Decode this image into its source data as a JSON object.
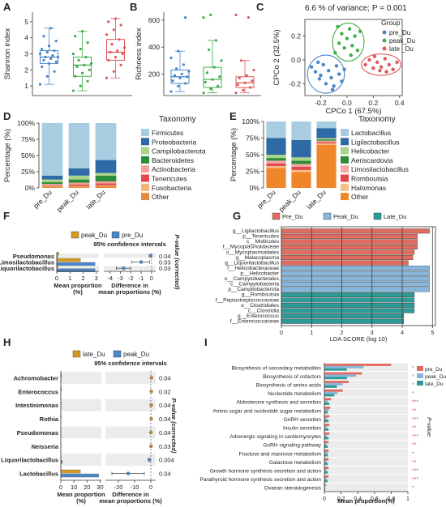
{
  "colors": {
    "pre": "#4a86c8",
    "peak": "#3fae49",
    "late": "#e0585b",
    "orange": "#d89a1e",
    "teal": "#2e9a96"
  },
  "chart_data": [
    {
      "panel": "A",
      "type": "box",
      "ylabel": "Shannon index",
      "yticks": [
        1,
        2,
        3,
        4,
        5
      ],
      "ylim": [
        0.4,
        5.6
      ],
      "groups": [
        "pre_Du",
        "peak_Du",
        "late_Du"
      ],
      "stats": [
        {
          "min": 1.1,
          "q1": 2.4,
          "med": 2.8,
          "q3": 3.2,
          "max": 4.6
        },
        {
          "min": 0.7,
          "q1": 1.6,
          "med": 2.3,
          "q3": 2.8,
          "max": 4.4
        },
        {
          "min": 1.5,
          "q1": 2.6,
          "med": 3.1,
          "q3": 3.9,
          "max": 5.2
        }
      ],
      "points": [
        [
          1.1,
          1.6,
          1.9,
          2.2,
          2.4,
          2.5,
          2.6,
          2.7,
          2.8,
          2.8,
          2.9,
          3.0,
          3.1,
          3.2,
          3.3,
          3.5,
          3.8,
          4.1,
          4.6
        ],
        [
          0.7,
          1.0,
          1.3,
          1.6,
          1.8,
          2.0,
          2.2,
          2.3,
          2.4,
          2.6,
          2.8,
          3.0,
          3.3,
          3.7,
          4.1,
          4.4
        ],
        [
          1.5,
          1.9,
          2.3,
          2.6,
          2.8,
          3.0,
          3.1,
          3.2,
          3.4,
          3.6,
          3.9,
          4.2,
          4.5,
          4.8,
          5.0,
          5.2
        ]
      ]
    },
    {
      "panel": "B",
      "type": "box",
      "ylabel": "Richness index",
      "yticks": [
        200,
        400,
        600
      ],
      "ylim": [
        40,
        660
      ],
      "groups": [
        "pre_Du",
        "peak_Du",
        "late_Du"
      ],
      "stats": [
        {
          "min": 70,
          "q1": 130,
          "med": 180,
          "q3": 230,
          "max": 370
        },
        {
          "min": 60,
          "q1": 100,
          "med": 160,
          "q3": 250,
          "max": 450
        },
        {
          "min": 60,
          "q1": 100,
          "med": 135,
          "q3": 180,
          "max": 300
        }
      ],
      "points": [
        [
          70,
          110,
          130,
          150,
          170,
          180,
          190,
          200,
          220,
          240,
          270,
          320,
          370,
          620
        ],
        [
          60,
          90,
          110,
          140,
          160,
          180,
          210,
          250,
          300,
          380,
          450,
          620,
          640
        ],
        [
          60,
          80,
          100,
          120,
          135,
          150,
          170,
          190,
          230,
          300,
          620,
          640
        ]
      ]
    },
    {
      "panel": "C",
      "type": "scatter",
      "title": "6.6 % of variance; P = 0.001",
      "xlabel": "CPCo 1 (67.5%)",
      "ylabel": "CPCo 2 (32.5%)",
      "xlim": [
        -0.32,
        0.42
      ],
      "ylim": [
        -0.3,
        0.34
      ],
      "xticks": [
        -0.2,
        0.0,
        0.2,
        0.4
      ],
      "yticks": [
        -0.2,
        0.0,
        0.2
      ],
      "legend_title": "Group",
      "legend": [
        "pre_Du",
        "peak_Du",
        "late _Du"
      ],
      "series": [
        {
          "points": [
            [
              -0.27,
              -0.06
            ],
            [
              -0.24,
              -0.1
            ],
            [
              -0.22,
              -0.02
            ],
            [
              -0.2,
              -0.13
            ],
            [
              -0.18,
              -0.04
            ],
            [
              -0.16,
              -0.2
            ],
            [
              -0.14,
              -0.09
            ],
            [
              -0.12,
              -0.15
            ],
            [
              -0.1,
              -0.22
            ],
            [
              -0.08,
              -0.05
            ],
            [
              -0.06,
              -0.12
            ],
            [
              -0.04,
              -0.18
            ],
            [
              -0.21,
              -0.16
            ],
            [
              -0.11,
              -0.25
            ],
            [
              -0.02,
              -0.08
            ]
          ]
        },
        {
          "points": [
            [
              -0.09,
              0.06
            ],
            [
              -0.06,
              0.14
            ],
            [
              -0.04,
              0.22
            ],
            [
              -0.02,
              0.1
            ],
            [
              0.0,
              0.18
            ],
            [
              0.02,
              0.26
            ],
            [
              0.04,
              0.12
            ],
            [
              0.06,
              0.2
            ],
            [
              0.08,
              0.08
            ],
            [
              0.1,
              0.24
            ],
            [
              -0.07,
              0.28
            ],
            [
              0.03,
              0.04
            ]
          ]
        },
        {
          "points": [
            [
              0.14,
              -0.04
            ],
            [
              0.17,
              0.0
            ],
            [
              0.2,
              -0.07
            ],
            [
              0.23,
              -0.02
            ],
            [
              0.26,
              -0.06
            ],
            [
              0.29,
              0.01
            ],
            [
              0.32,
              -0.04
            ],
            [
              0.35,
              -0.08
            ],
            [
              0.38,
              -0.02
            ],
            [
              0.21,
              0.03
            ],
            [
              0.3,
              -0.1
            ],
            [
              0.25,
              -0.09
            ]
          ]
        }
      ],
      "ellipses": [
        {
          "cx": -0.16,
          "cy": -0.12,
          "rx": 0.14,
          "ry": 0.16
        },
        {
          "cx": 0.01,
          "cy": 0.15,
          "rx": 0.12,
          "ry": 0.16
        },
        {
          "cx": 0.26,
          "cy": -0.04,
          "rx": 0.15,
          "ry": 0.09
        }
      ]
    },
    {
      "panel": "D",
      "type": "stacked-bar",
      "ylabel": "Percentage (%)",
      "yticks": [
        "0%",
        "25%",
        "50%",
        "75%",
        "100%"
      ],
      "categories": [
        "pre_Du",
        "peak_Du",
        "late_Du"
      ],
      "legend_title": "Taxonomy",
      "series": [
        {
          "name": "Other",
          "color": "#e58c3a",
          "values": [
            2,
            2,
            3
          ]
        },
        {
          "name": "Fusobacteria",
          "color": "#f4b678",
          "values": [
            1,
            1,
            1
          ]
        },
        {
          "name": "Tenericutes",
          "color": "#e3454a",
          "values": [
            1,
            2,
            3
          ]
        },
        {
          "name": "Actinobacteria",
          "color": "#f3a3a0",
          "values": [
            2,
            3,
            3
          ]
        },
        {
          "name": "Bacteroidetes",
          "color": "#2d8d37",
          "values": [
            3,
            5,
            9
          ]
        },
        {
          "name": "Campilobacterota",
          "color": "#a7d38a",
          "values": [
            4,
            6,
            4
          ]
        },
        {
          "name": "Proteobacteria",
          "color": "#2e6aa6",
          "values": [
            6,
            11,
            20
          ]
        },
        {
          "name": "Firmicutes",
          "color": "#a8cce0",
          "values": [
            81,
            70,
            57
          ]
        }
      ]
    },
    {
      "panel": "E",
      "type": "stacked-bar",
      "ylabel": "Percentage (%)",
      "yticks": [
        "0%",
        "25%",
        "50%",
        "75%",
        "100%"
      ],
      "categories": [
        "pre_Du",
        "peak_Du",
        "late_Du"
      ],
      "legend_title": "Taxonomy",
      "series": [
        {
          "name": "Other",
          "color": "#f0862a",
          "values": [
            30,
            24,
            65
          ]
        },
        {
          "name": "Halomonas",
          "color": "#f6bf8a",
          "values": [
            3,
            3,
            2
          ]
        },
        {
          "name": "Romboutsia",
          "color": "#e3454a",
          "values": [
            4,
            5,
            2
          ]
        },
        {
          "name": "Limosilactobacillus",
          "color": "#f4a9a6",
          "values": [
            4,
            4,
            2
          ]
        },
        {
          "name": "Aeriscardovia",
          "color": "#2d8d37",
          "values": [
            4,
            5,
            2
          ]
        },
        {
          "name": "Helicobacter",
          "color": "#a7d38a",
          "values": [
            5,
            5,
            2
          ]
        },
        {
          "name": "Ligilactobacillus",
          "color": "#2e6aa6",
          "values": [
            25,
            26,
            15
          ]
        },
        {
          "name": "Lactobacillus",
          "color": "#a8cce0",
          "values": [
            25,
            28,
            10
          ]
        }
      ]
    },
    {
      "panel": "F",
      "type": "extended-error-bar",
      "legend": [
        "peak_Du",
        "pre_Du"
      ],
      "ci_title": "95% confidence intervals",
      "xlabel_left": "Mean proportion (%)",
      "xlabel_right": "Difference in mean proportions (%)",
      "pvalue_label": "P-value (corrected)",
      "left_ticks": [
        0,
        1,
        2,
        3
      ],
      "right_ticks": [
        -4,
        -3,
        -2,
        -1,
        0
      ],
      "features": [
        "Pseudomonas",
        "Limosilactobacillus",
        "Liquorilactobacillus"
      ],
      "peak": [
        0.15,
        1.8,
        0.1
      ],
      "pre": [
        0.05,
        2.9,
        2.9
      ],
      "diff": [
        -0.1,
        -1.0,
        -2.7
      ],
      "ci": [
        [
          -0.2,
          0.0
        ],
        [
          -1.9,
          -0.2
        ],
        [
          -3.4,
          -2.0
        ]
      ],
      "pvalues": [
        "0.04",
        "0.03",
        "0.03"
      ]
    },
    {
      "panel": "G",
      "type": "lda-bar",
      "xlabel": "LDA SCORE (log 10)",
      "xlim": [
        0,
        5.1
      ],
      "xticks": [
        0,
        1,
        2,
        3,
        4,
        5
      ],
      "legend": [
        "Pre_Du",
        "Peak_Du",
        "Late_Du"
      ],
      "features": [
        "g__Ligilactobacillus",
        "p__Tenericutes",
        "c__Mollicutes",
        "f__Mycoplasmoidaceae",
        "o__Mycoplasmoidales",
        "g__Malacoplasma",
        "g__Liquorilactobacillus",
        "f__Helicobacteraceae",
        "p__Helicobacter",
        "o__Campylobacterales",
        "c__Campylobacteria",
        "p__Campilobacterota",
        "g__Romboutsia",
        "f__Peptostreptococcaceae",
        "o__Clostridiales",
        "c__Clostridia",
        "g__Enterococcus",
        "f__Enterococcaceae"
      ],
      "values": [
        4.9,
        4.5,
        4.5,
        4.5,
        4.4,
        4.35,
        4.2,
        4.9,
        4.9,
        4.9,
        4.9,
        4.9,
        4.4,
        4.4,
        4.4,
        4.4,
        4.05,
        4.05
      ],
      "groups": [
        0,
        0,
        0,
        0,
        0,
        0,
        0,
        1,
        1,
        1,
        1,
        1,
        2,
        2,
        2,
        2,
        2,
        2
      ]
    },
    {
      "panel": "H",
      "type": "extended-error-bar",
      "legend": [
        "late_Du",
        "peak_Du"
      ],
      "ci_title": "95% confidence intervals",
      "xlabel_left": "Mean proportion (%)",
      "xlabel_right": "Difference in mean proportions (%)",
      "pvalue_label": "P-value (corrected)",
      "left_ticks": [
        0,
        10,
        20,
        30
      ],
      "right_ticks": [
        -20,
        -10,
        0
      ],
      "features": [
        "Achromobacter",
        "Enterococcus",
        "Intestinimonas",
        "Rothia",
        "Pseudomonas",
        "Neisseria",
        "Liquorilactobacillus",
        "Lactobacillus"
      ],
      "late": [
        0.5,
        0.4,
        0.3,
        0.3,
        0.2,
        0.2,
        0.1,
        15
      ],
      "peak": [
        0.1,
        0.1,
        0.05,
        0.05,
        0.15,
        0.05,
        1.0,
        29
      ],
      "diff": [
        0.4,
        0.3,
        0.25,
        0.25,
        0.05,
        0.15,
        -0.9,
        -14
      ],
      "ci": [
        [
          0.1,
          0.7
        ],
        [
          0.0,
          0.6
        ],
        [
          0.0,
          0.5
        ],
        [
          0.0,
          0.5
        ],
        [
          -0.2,
          0.3
        ],
        [
          0.0,
          0.3
        ],
        [
          -1.5,
          -0.3
        ],
        [
          -24,
          -4
        ]
      ],
      "pvalues": [
        "0.04",
        "0.02",
        "0.04",
        "0.04",
        "0.04",
        "0.03",
        "0.004",
        "0.04"
      ]
    },
    {
      "panel": "I",
      "type": "grouped-hbar",
      "xlabel": "Mean proportion(%)",
      "xticks": [
        0,
        0.2,
        0.4,
        0.6,
        0.8,
        1.0
      ],
      "xlim": [
        0,
        1.0
      ],
      "legend": [
        "pre_Du",
        "peak_Du",
        "late_Du"
      ],
      "pvalue_label": "P-value",
      "features": [
        "Biosynthesis of secondary metabolites",
        "Biosynthesis of cofactors",
        "Biosynthesis of amino acids",
        "Nucleotide metabolism",
        "Aldosterone synthesis and secretion",
        "Amino sugar and nucleotide sugar metabolism",
        "GnRH secretion",
        "Insulin secretion",
        "Adrenergic signaling in cardiomyocytes",
        "GnRH signaling pathway",
        "Fructose and mannose metabolism",
        "Galactose metabolism",
        "Growth hormone synthesis secretion and action",
        "Parathyroid hormone synthesis secretion and action",
        "Ovarian steroidogenesis"
      ],
      "pre": [
        0.8,
        0.45,
        0.29,
        0.22,
        0.08,
        0.07,
        0.06,
        0.06,
        0.06,
        0.05,
        0.05,
        0.05,
        0.05,
        0.05,
        0.02
      ],
      "peak": [
        0.47,
        0.38,
        0.22,
        0.16,
        0.04,
        0.05,
        0.03,
        0.03,
        0.03,
        0.03,
        0.04,
        0.03,
        0.03,
        0.03,
        0.01
      ],
      "late": [
        0.27,
        0.27,
        0.15,
        0.12,
        0.06,
        0.04,
        0.05,
        0.05,
        0.05,
        0.04,
        0.04,
        0.04,
        0.04,
        0.04,
        0.01
      ],
      "stars": [
        "*",
        "*",
        "*",
        "*",
        "***",
        "**",
        "***",
        "**",
        "***",
        "**",
        "*",
        "**",
        "***",
        "***",
        "*"
      ]
    }
  ]
}
